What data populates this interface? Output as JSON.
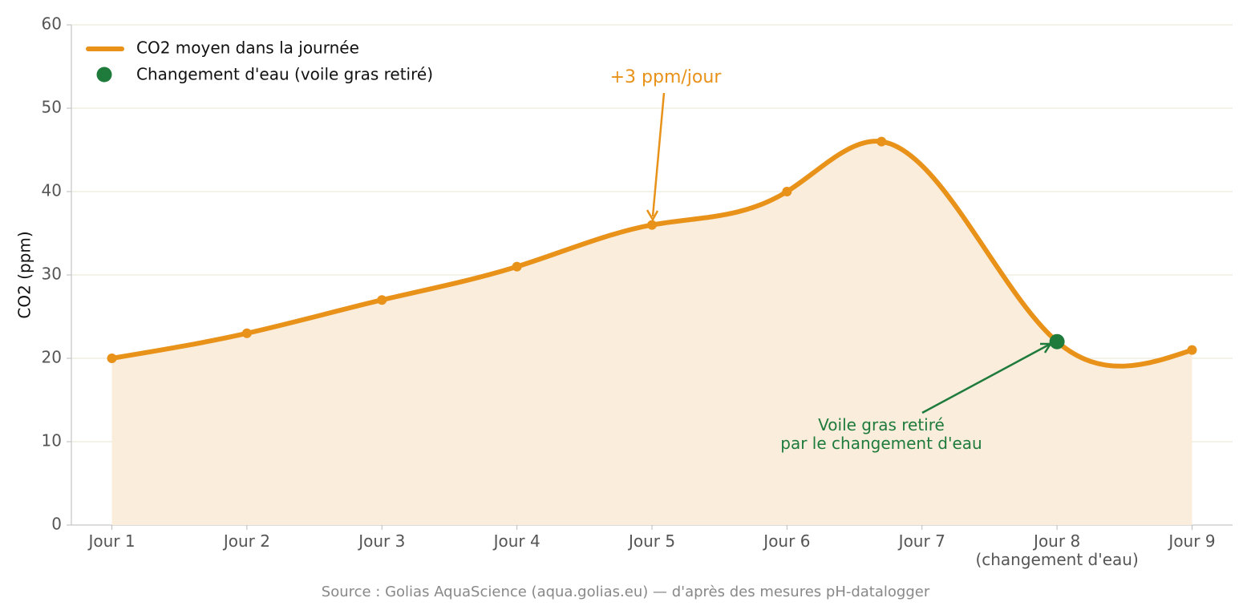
{
  "chart_data": {
    "type": "line",
    "ylabel": "CO2 (ppm)",
    "source": "Source : Golias AquaScience (aqua.golias.eu) — d'après des mesures pH-datalogger",
    "xlim": [
      0.7,
      9.3
    ],
    "xticks": [
      {
        "value": 1,
        "label": "Jour 1"
      },
      {
        "value": 2,
        "label": "Jour 2"
      },
      {
        "value": 3,
        "label": "Jour 3"
      },
      {
        "value": 4,
        "label": "Jour 4"
      },
      {
        "value": 5,
        "label": "Jour 5"
      },
      {
        "value": 6,
        "label": "Jour 6"
      },
      {
        "value": 7,
        "label": "Jour 7"
      },
      {
        "value": 8,
        "label": "Jour 8\n(changement d'eau)"
      },
      {
        "value": 9,
        "label": "Jour 9"
      }
    ],
    "ylim": [
      0,
      60
    ],
    "yticks": [
      0,
      10,
      20,
      30,
      40,
      50,
      60
    ],
    "grid": true,
    "legend": "upper left",
    "series": [
      {
        "name": "CO2 moyen dans la journée",
        "color": "#e8921a",
        "fill": "#faeddc",
        "x": [
          1,
          2,
          3,
          4,
          5,
          6,
          6.7,
          8,
          9
        ],
        "values": [
          20,
          23,
          27,
          31,
          36,
          40,
          46,
          22,
          21
        ]
      },
      {
        "name": "Changement d'eau (voile gras retiré)",
        "color": "#1e7b3c",
        "x": [
          8
        ],
        "values": [
          22
        ]
      }
    ],
    "annotations": [
      {
        "text": "+3 ppm/jour",
        "color": "#e8921a"
      },
      {
        "text": "Voile gras retiré\npar le changement d'eau",
        "color": "#1e7b3c"
      }
    ]
  }
}
